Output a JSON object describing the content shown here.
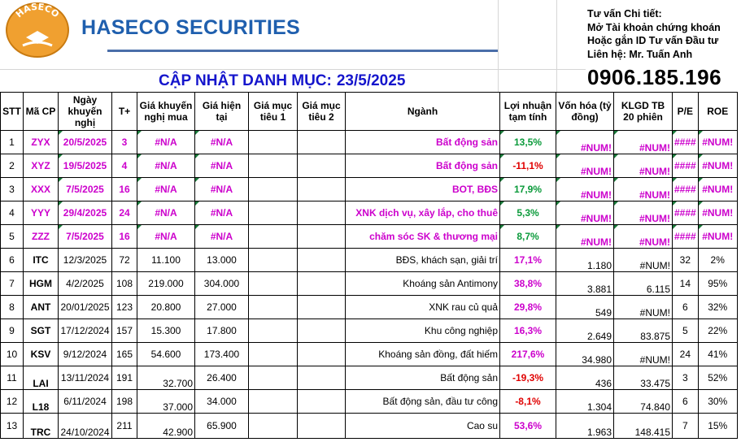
{
  "brand": {
    "logo_text": "HASECO",
    "name": "HASECO SECURITIES"
  },
  "contact": {
    "line1": "Tư vấn Chi tiết:",
    "line2": "Mở Tài khoản chứng khoán",
    "line3": "Hoặc gắn ID Tư vấn Đầu tư",
    "line4": "Liên hệ: Mr. Tuấn Anh",
    "phone": "0906.185.196"
  },
  "update": {
    "title": "CẬP NHẬT DANH MỤC:",
    "date": "23/5/2025"
  },
  "table": {
    "headers": [
      "STT",
      "Mã CP",
      "Ngày khuyến nghị",
      "T+",
      "Giá khuyến nghị mua",
      "Giá hiện tại",
      "Giá mục tiêu 1",
      "Giá mục tiêu 2",
      "Ngành",
      "Lợi nhuận tạm tính",
      "Vốn hóa (tỷ đồng)",
      "KLGD TB 20 phiên",
      "P/E",
      "ROE"
    ],
    "rows": [
      {
        "stt": "1",
        "ma": "ZYX",
        "ngay": "20/5/2025",
        "t": "3",
        "gkn": "#N/A",
        "ght": "#N/A",
        "gmt1": "",
        "gmt2": "",
        "nganh": "Bất động sản",
        "ln": "13,5%",
        "vh": "#NUM!",
        "kl": "#NUM!",
        "pe": "####",
        "roe": "#NUM!"
      },
      {
        "stt": "2",
        "ma": "XYZ",
        "ngay": "19/5/2025",
        "t": "4",
        "gkn": "#N/A",
        "ght": "#N/A",
        "gmt1": "",
        "gmt2": "",
        "nganh": "Bất động sản",
        "ln": "-11,1%",
        "vh": "#NUM!",
        "kl": "#NUM!",
        "pe": "####",
        "roe": "#NUM!"
      },
      {
        "stt": "3",
        "ma": "XXX",
        "ngay": "7/5/2025",
        "t": "16",
        "gkn": "#N/A",
        "ght": "#N/A",
        "gmt1": "",
        "gmt2": "",
        "nganh": "BOT, BĐS",
        "ln": "17,9%",
        "vh": "#NUM!",
        "kl": "#NUM!",
        "pe": "####",
        "roe": "#NUM!"
      },
      {
        "stt": "4",
        "ma": "YYY",
        "ngay": "29/4/2025",
        "t": "24",
        "gkn": "#N/A",
        "ght": "#N/A",
        "gmt1": "",
        "gmt2": "",
        "nganh": "XNK dịch vụ, xây lắp, cho thuê",
        "ln": "5,3%",
        "vh": "#NUM!",
        "kl": "#NUM!",
        "pe": "####",
        "roe": "#NUM!"
      },
      {
        "stt": "5",
        "ma": "ZZZ",
        "ngay": "7/5/2025",
        "t": "16",
        "gkn": "#N/A",
        "ght": "#N/A",
        "gmt1": "",
        "gmt2": "",
        "nganh": "chăm sóc SK & thương mại",
        "ln": "8,7%",
        "vh": "#NUM!",
        "kl": "#NUM!",
        "pe": "####",
        "roe": "#NUM!"
      },
      {
        "stt": "6",
        "ma": "ITC",
        "ngay": "12/3/2025",
        "t": "72",
        "gkn": "11.100",
        "ght": "13.000",
        "gmt1": "",
        "gmt2": "",
        "nganh": "BĐS, khách sạn, giải trí",
        "ln": "17,1%",
        "vh": "1.180",
        "kl": "#NUM!",
        "pe": "32",
        "roe": "2%"
      },
      {
        "stt": "7",
        "ma": "HGM",
        "ngay": "4/2/2025",
        "t": "108",
        "gkn": "219.000",
        "ght": "304.000",
        "gmt1": "",
        "gmt2": "",
        "nganh": "Khoáng sản Antimony",
        "ln": "38,8%",
        "vh": "3.881",
        "kl": "6.115",
        "pe": "14",
        "roe": "95%"
      },
      {
        "stt": "8",
        "ma": "ANT",
        "ngay": "20/01/2025",
        "t": "123",
        "gkn": "20.800",
        "ght": "27.000",
        "gmt1": "",
        "gmt2": "",
        "nganh": "XNK rau củ quả",
        "ln": "29,8%",
        "vh": "549",
        "kl": "#NUM!",
        "pe": "6",
        "roe": "32%"
      },
      {
        "stt": "9",
        "ma": "SGT",
        "ngay": "17/12/2024",
        "t": "157",
        "gkn": "15.300",
        "ght": "17.800",
        "gmt1": "",
        "gmt2": "",
        "nganh": "Khu công nghiệp",
        "ln": "16,3%",
        "vh": "2.649",
        "kl": "83.875",
        "pe": "5",
        "roe": "22%"
      },
      {
        "stt": "10",
        "ma": "KSV",
        "ngay": "9/12/2024",
        "t": "165",
        "gkn": "54.600",
        "ght": "173.400",
        "gmt1": "",
        "gmt2": "",
        "nganh": "Khoáng sản đồng, đất hiếm",
        "ln": "217,6%",
        "vh": "34.980",
        "kl": "#NUM!",
        "pe": "24",
        "roe": "41%"
      },
      {
        "stt": "11",
        "ma": "LAI",
        "ngay": "13/11/2024",
        "t": "191",
        "gkn": "32.700",
        "ght": "26.400",
        "gmt1": "",
        "gmt2": "",
        "nganh": "Bất động sản",
        "ln": "-19,3%",
        "vh": "436",
        "kl": "33.475",
        "pe": "3",
        "roe": "52%"
      },
      {
        "stt": "12",
        "ma": "L18",
        "ngay": "6/11/2024",
        "t": "198",
        "gkn": "37.000",
        "ght": "34.000",
        "gmt1": "",
        "gmt2": "",
        "nganh": "Bất động sản, đầu tư công",
        "ln": "-8,1%",
        "vh": "1.304",
        "kl": "74.840",
        "pe": "6",
        "roe": "30%"
      },
      {
        "stt": "13",
        "ma": "TRC",
        "ngay": "24/10/2024",
        "t": "211",
        "gkn": "42.900",
        "ght": "65.900",
        "gmt1": "",
        "gmt2": "",
        "nganh": "Cao su",
        "ln": "53,6%",
        "vh": "1.963",
        "kl": "148.415",
        "pe": "7",
        "roe": "15%"
      }
    ]
  }
}
